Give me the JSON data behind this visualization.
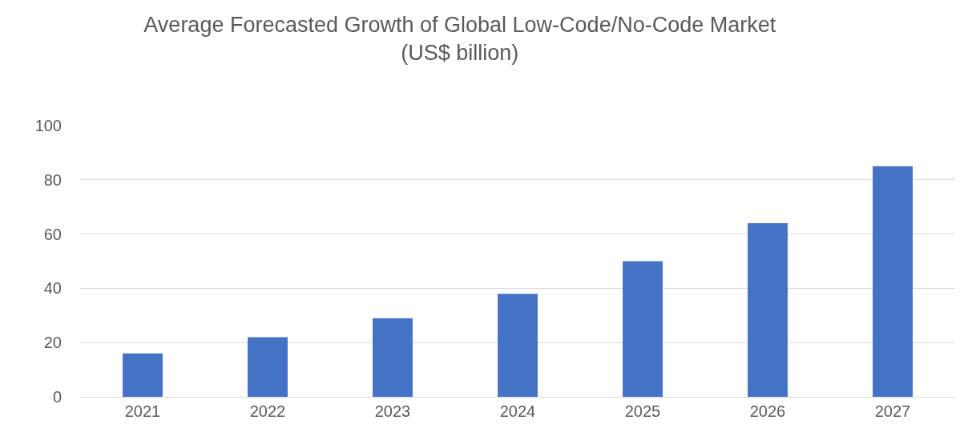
{
  "chart_data": {
    "type": "bar",
    "title": "Average Forecasted Growth of Global Low-Code/No-Code Market (US$ billion)",
    "categories": [
      "2021",
      "2022",
      "2023",
      "2024",
      "2025",
      "2026",
      "2027"
    ],
    "values": [
      16,
      22,
      29,
      38,
      50,
      64,
      85
    ],
    "color": "#4472c4",
    "ylim": [
      0,
      100
    ],
    "yticks": [
      0,
      20,
      40,
      60,
      80,
      100
    ],
    "grid": "y"
  }
}
